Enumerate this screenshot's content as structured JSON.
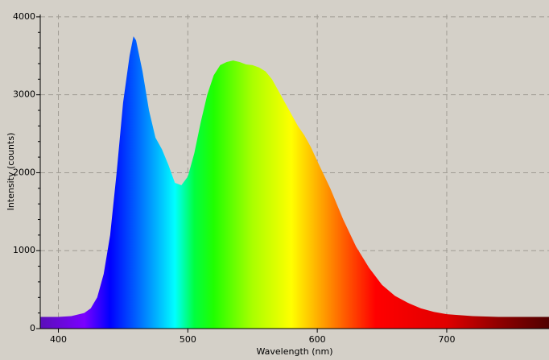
{
  "chart_data": {
    "type": "area",
    "x_label": "Wavelength (nm)",
    "y_label": "Intensity (counts)",
    "x": [
      386,
      400,
      410,
      420,
      425,
      430,
      435,
      440,
      445,
      450,
      455,
      458,
      460,
      465,
      470,
      475,
      480,
      485,
      490,
      495,
      500,
      505,
      510,
      515,
      520,
      525,
      530,
      535,
      540,
      545,
      550,
      555,
      560,
      565,
      570,
      575,
      580,
      585,
      590,
      595,
      600,
      610,
      620,
      630,
      640,
      650,
      660,
      670,
      680,
      690,
      700,
      720,
      740,
      760,
      779
    ],
    "values": [
      150,
      150,
      160,
      200,
      260,
      400,
      700,
      1200,
      2000,
      2900,
      3500,
      3750,
      3700,
      3300,
      2800,
      2450,
      2300,
      2100,
      1870,
      1840,
      1950,
      2250,
      2650,
      3000,
      3250,
      3380,
      3420,
      3440,
      3420,
      3390,
      3380,
      3350,
      3300,
      3200,
      3050,
      2900,
      2750,
      2600,
      2480,
      2330,
      2150,
      1800,
      1400,
      1050,
      780,
      560,
      420,
      330,
      260,
      215,
      185,
      160,
      150,
      150,
      150
    ],
    "gradient": [
      {
        "x": 386,
        "color": "#5a10b8"
      },
      {
        "x": 420,
        "color": "#7a00ff"
      },
      {
        "x": 440,
        "color": "#0000ff"
      },
      {
        "x": 460,
        "color": "#0060ff"
      },
      {
        "x": 480,
        "color": "#00c8ff"
      },
      {
        "x": 490,
        "color": "#00ffff"
      },
      {
        "x": 505,
        "color": "#00ff40"
      },
      {
        "x": 520,
        "color": "#20ff00"
      },
      {
        "x": 550,
        "color": "#aaff00"
      },
      {
        "x": 580,
        "color": "#ffff00"
      },
      {
        "x": 600,
        "color": "#ffb000"
      },
      {
        "x": 620,
        "color": "#ff6000"
      },
      {
        "x": 645,
        "color": "#ff0000"
      },
      {
        "x": 700,
        "color": "#e00000"
      },
      {
        "x": 740,
        "color": "#900000"
      },
      {
        "x": 779,
        "color": "#500000"
      }
    ],
    "xlim": [
      386,
      779
    ],
    "ylim": [
      0,
      4030
    ],
    "xticks": [
      400,
      500,
      600,
      700
    ],
    "yticks": [
      0,
      1000,
      2000,
      3000,
      4000
    ],
    "grid": true
  }
}
